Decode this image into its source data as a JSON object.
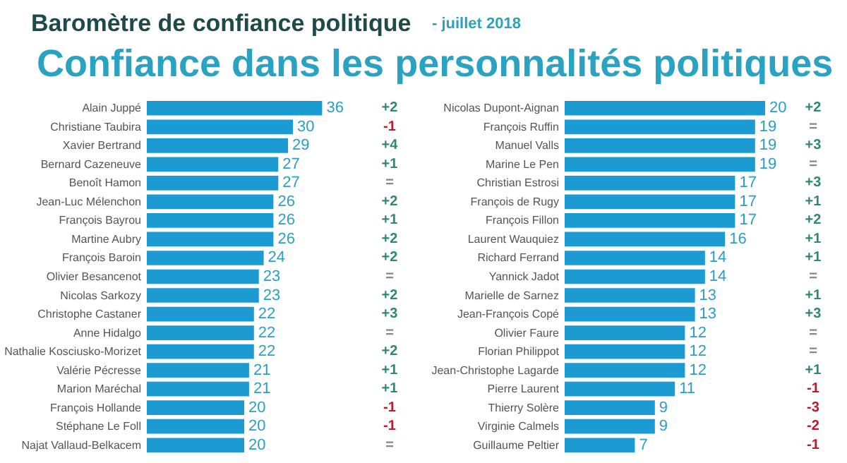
{
  "chart_data": [
    {
      "type": "bar",
      "orientation": "horizontal",
      "title": "Baromètre de confiance politique",
      "subtitle": "Confiance dans les personnalités politiques",
      "color": "#1b9bd1",
      "data_labels": true,
      "categories": [
        "Alain Juppé",
        "Christiane Taubira",
        "Xavier Bertrand",
        "Bernard Cazeneuve",
        "Benoît Hamon",
        "Jean-Luc Mélenchon",
        "François Bayrou",
        "Martine Aubry",
        "François Baroin",
        "Olivier Besancenot",
        "Nicolas Sarkozy",
        "Christophe Castaner",
        "Anne Hidalgo",
        "Nathalie Kosciusko-Morizet",
        "Valérie Pécresse",
        "Marion Maréchal",
        "François Hollande",
        "Stéphane Le Foll",
        "Najat Vallaud-Belkacem"
      ],
      "values": [
        36,
        30,
        29,
        27,
        27,
        26,
        26,
        26,
        24,
        23,
        23,
        22,
        22,
        22,
        21,
        21,
        20,
        20,
        20
      ],
      "annotations": [
        "+2",
        "-1",
        "+4",
        "+1",
        "=",
        "+2",
        "+1",
        "+2",
        "+2",
        "=",
        "+2",
        "+3",
        "=",
        "+2",
        "+1",
        "+1",
        "-1",
        "-1",
        "="
      ]
    },
    {
      "type": "bar",
      "orientation": "horizontal",
      "title": "- juillet 2018",
      "color": "#1b9bd1",
      "data_labels": true,
      "categories": [
        "Nicolas Dupont-Aignan",
        "François Ruffin",
        "Manuel Valls",
        "Marine Le Pen",
        "Christian Estrosi",
        "François de Rugy",
        "François Fillon",
        "Laurent Wauquiez",
        "Richard Ferrand",
        "Yannick Jadot",
        "Marielle de Sarnez",
        "Jean-François Copé",
        "Olivier Faure",
        "Florian Philippot",
        "Jean-Christophe Lagarde",
        "Pierre Laurent",
        "Thierry Solère",
        "Virginie Calmels",
        "Guillaume Peltier"
      ],
      "values": [
        20,
        19,
        19,
        19,
        17,
        17,
        17,
        16,
        14,
        14,
        13,
        13,
        12,
        12,
        12,
        11,
        9,
        9,
        7
      ],
      "annotations": [
        "+2",
        "=",
        "+3",
        "=",
        "+3",
        "+1",
        "+2",
        "+1",
        "+1",
        "=",
        "+1",
        "+3",
        "=",
        "=",
        "+1",
        "-1",
        "-3",
        "-2",
        "-1"
      ]
    }
  ]
}
